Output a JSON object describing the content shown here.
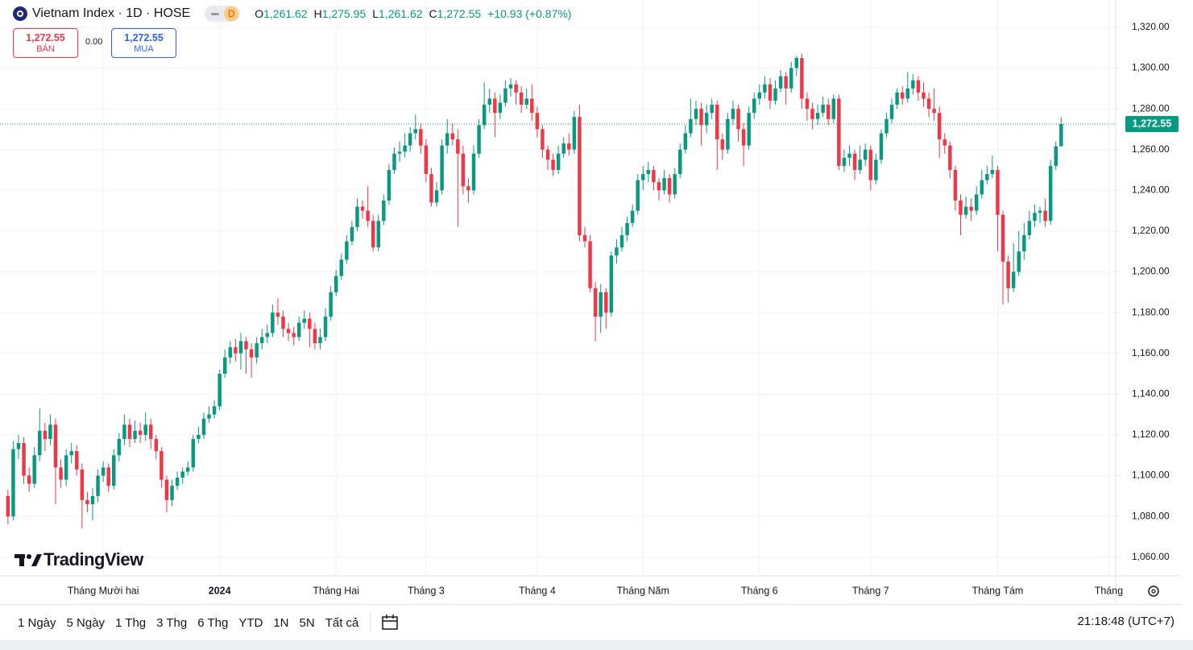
{
  "header": {
    "title": "Vietnam Index · 1D · HOSE",
    "interval_badge": "D",
    "ohlc": [
      {
        "key": "O",
        "value": "1,261.62"
      },
      {
        "key": "H",
        "value": "1,275.95"
      },
      {
        "key": "L",
        "value": "1,261.62"
      },
      {
        "key": "C",
        "value": "1,272.55"
      }
    ],
    "change": "+10.93 (+0.87%)"
  },
  "trade": {
    "sell_price": "1,272.55",
    "sell_label": "BÁN",
    "spread": "0.00",
    "buy_price": "1,272.55",
    "buy_label": "MUA"
  },
  "logo": "TradingView",
  "toolbar": {
    "ranges": [
      "1 Ngày",
      "5 Ngày",
      "1 Thg",
      "3 Thg",
      "6 Thg",
      "YTD",
      "1N",
      "5N",
      "Tất cả"
    ],
    "time": "21:18:48 (UTC+7)"
  },
  "chart_data": {
    "type": "candlestick",
    "up_color": "#089981",
    "down_color": "#f23645",
    "grid": true,
    "ylim": [
      1050.8,
      1333.4
    ],
    "yticks": [
      {
        "value": 1060,
        "label": "1,060.00"
      },
      {
        "value": 1080,
        "label": "1,080.00"
      },
      {
        "value": 1100,
        "label": "1,100.00"
      },
      {
        "value": 1120,
        "label": "1,120.00"
      },
      {
        "value": 1140,
        "label": "1,140.00"
      },
      {
        "value": 1160,
        "label": "1,160.00"
      },
      {
        "value": 1180,
        "label": "1,180.00"
      },
      {
        "value": 1200,
        "label": "1,200.00"
      },
      {
        "value": 1220,
        "label": "1,220.00"
      },
      {
        "value": 1240,
        "label": "1,240.00"
      },
      {
        "value": 1260,
        "label": "1,260.00"
      },
      {
        "value": 1280,
        "label": "1,280.00"
      },
      {
        "value": 1300,
        "label": "1,300.00"
      },
      {
        "value": 1320,
        "label": "1,320.00"
      }
    ],
    "xlim": [
      -1.5,
      209.3
    ],
    "xticks": [
      {
        "value": 18,
        "label": "Tháng Mười hai"
      },
      {
        "value": 40,
        "label": "2024",
        "bold": true
      },
      {
        "value": 62,
        "label": "Tháng Hai"
      },
      {
        "value": 79,
        "label": "Tháng 3"
      },
      {
        "value": 100,
        "label": "Tháng 4"
      },
      {
        "value": 120,
        "label": "Tháng Năm"
      },
      {
        "value": 142,
        "label": "Tháng 6"
      },
      {
        "value": 163,
        "label": "Tháng 7"
      },
      {
        "value": 187,
        "label": "Tháng Tám"
      },
      {
        "value": 208,
        "label": "Tháng"
      }
    ],
    "last_price": {
      "value": 1272.55,
      "label": "1,272.55"
    },
    "candles": [
      [
        1090,
        1093,
        1076,
        1080
      ],
      [
        1080,
        1117,
        1078,
        1113
      ],
      [
        1113,
        1120,
        1108,
        1116
      ],
      [
        1116,
        1119,
        1096,
        1100
      ],
      [
        1100,
        1104,
        1092,
        1096
      ],
      [
        1096,
        1114,
        1094,
        1110
      ],
      [
        1110,
        1133,
        1107,
        1122
      ],
      [
        1122,
        1126,
        1112,
        1118
      ],
      [
        1118,
        1130,
        1115,
        1125
      ],
      [
        1125,
        1128,
        1086,
        1104
      ],
      [
        1104,
        1108,
        1094,
        1098
      ],
      [
        1098,
        1113,
        1095,
        1110
      ],
      [
        1110,
        1116,
        1106,
        1112
      ],
      [
        1112,
        1115,
        1100,
        1103
      ],
      [
        1103,
        1106,
        1074,
        1088
      ],
      [
        1088,
        1092,
        1082,
        1086
      ],
      [
        1086,
        1094,
        1078,
        1090
      ],
      [
        1090,
        1103,
        1087,
        1100
      ],
      [
        1100,
        1107,
        1097,
        1104
      ],
      [
        1104,
        1106,
        1092,
        1095
      ],
      [
        1095,
        1113,
        1093,
        1110
      ],
      [
        1110,
        1121,
        1107,
        1118
      ],
      [
        1118,
        1130,
        1115,
        1125
      ],
      [
        1125,
        1128,
        1114,
        1118
      ],
      [
        1118,
        1127,
        1116,
        1122
      ],
      [
        1122,
        1126,
        1116,
        1120
      ],
      [
        1120,
        1131,
        1117,
        1125
      ],
      [
        1125,
        1128,
        1113,
        1118
      ],
      [
        1118,
        1120,
        1108,
        1112
      ],
      [
        1112,
        1114,
        1094,
        1098
      ],
      [
        1098,
        1100,
        1082,
        1088
      ],
      [
        1088,
        1098,
        1085,
        1095
      ],
      [
        1095,
        1102,
        1093,
        1099
      ],
      [
        1099,
        1104,
        1096,
        1102
      ],
      [
        1102,
        1107,
        1100,
        1104
      ],
      [
        1104,
        1120,
        1102,
        1118
      ],
      [
        1118,
        1124,
        1116,
        1120
      ],
      [
        1120,
        1131,
        1118,
        1128
      ],
      [
        1128,
        1134,
        1126,
        1130
      ],
      [
        1130,
        1137,
        1128,
        1134
      ],
      [
        1134,
        1152,
        1132,
        1150
      ],
      [
        1150,
        1162,
        1148,
        1158
      ],
      [
        1158,
        1166,
        1155,
        1163
      ],
      [
        1163,
        1167,
        1156,
        1160
      ],
      [
        1160,
        1170,
        1152,
        1166
      ],
      [
        1166,
        1168,
        1150,
        1162
      ],
      [
        1162,
        1165,
        1148,
        1158
      ],
      [
        1158,
        1168,
        1155,
        1165
      ],
      [
        1165,
        1172,
        1162,
        1168
      ],
      [
        1168,
        1174,
        1165,
        1170
      ],
      [
        1170,
        1184,
        1168,
        1180
      ],
      [
        1180,
        1187,
        1174,
        1178
      ],
      [
        1178,
        1181,
        1168,
        1172
      ],
      [
        1172,
        1175,
        1166,
        1170
      ],
      [
        1170,
        1173,
        1164,
        1168
      ],
      [
        1168,
        1178,
        1166,
        1175
      ],
      [
        1175,
        1181,
        1172,
        1177
      ],
      [
        1177,
        1180,
        1163,
        1172
      ],
      [
        1172,
        1175,
        1162,
        1165
      ],
      [
        1165,
        1172,
        1162,
        1168
      ],
      [
        1168,
        1182,
        1166,
        1178
      ],
      [
        1178,
        1193,
        1176,
        1190
      ],
      [
        1190,
        1201,
        1188,
        1198
      ],
      [
        1198,
        1209,
        1196,
        1206
      ],
      [
        1206,
        1218,
        1204,
        1215
      ],
      [
        1215,
        1225,
        1213,
        1222
      ],
      [
        1222,
        1236,
        1220,
        1232
      ],
      [
        1232,
        1235,
        1226,
        1230
      ],
      [
        1230,
        1242,
        1222,
        1225
      ],
      [
        1225,
        1228,
        1210,
        1212
      ],
      [
        1212,
        1228,
        1210,
        1225
      ],
      [
        1225,
        1238,
        1223,
        1235
      ],
      [
        1235,
        1253,
        1233,
        1250
      ],
      [
        1250,
        1261,
        1248,
        1258
      ],
      [
        1258,
        1264,
        1254,
        1259
      ],
      [
        1259,
        1268,
        1256,
        1262
      ],
      [
        1262,
        1271,
        1259,
        1268
      ],
      [
        1268,
        1277,
        1265,
        1270
      ],
      [
        1270,
        1273,
        1258,
        1262
      ],
      [
        1262,
        1265,
        1244,
        1248
      ],
      [
        1248,
        1251,
        1232,
        1234
      ],
      [
        1234,
        1244,
        1232,
        1240
      ],
      [
        1240,
        1265,
        1238,
        1262
      ],
      [
        1262,
        1275,
        1258,
        1268
      ],
      [
        1268,
        1273,
        1262,
        1265
      ],
      [
        1265,
        1270,
        1222,
        1258
      ],
      [
        1258,
        1262,
        1238,
        1242
      ],
      [
        1242,
        1246,
        1234,
        1240
      ],
      [
        1240,
        1262,
        1238,
        1258
      ],
      [
        1258,
        1275,
        1256,
        1272
      ],
      [
        1272,
        1293,
        1270,
        1282
      ],
      [
        1282,
        1290,
        1278,
        1285
      ],
      [
        1285,
        1288,
        1266,
        1278
      ],
      [
        1278,
        1287,
        1275,
        1283
      ],
      [
        1283,
        1294,
        1281,
        1290
      ],
      [
        1290,
        1295,
        1286,
        1292
      ],
      [
        1292,
        1294,
        1282,
        1288
      ],
      [
        1288,
        1291,
        1278,
        1282
      ],
      [
        1282,
        1290,
        1280,
        1285
      ],
      [
        1285,
        1292,
        1274,
        1278
      ],
      [
        1278,
        1281,
        1266,
        1270
      ],
      [
        1270,
        1272,
        1256,
        1260
      ],
      [
        1260,
        1262,
        1250,
        1255
      ],
      [
        1255,
        1258,
        1247,
        1250
      ],
      [
        1250,
        1262,
        1248,
        1258
      ],
      [
        1258,
        1266,
        1256,
        1263
      ],
      [
        1263,
        1268,
        1257,
        1260
      ],
      [
        1260,
        1279,
        1258,
        1276
      ],
      [
        1276,
        1282,
        1215,
        1218
      ],
      [
        1218,
        1222,
        1212,
        1215
      ],
      [
        1215,
        1218,
        1190,
        1192
      ],
      [
        1192,
        1195,
        1166,
        1178
      ],
      [
        1178,
        1194,
        1170,
        1190
      ],
      [
        1190,
        1192,
        1172,
        1180
      ],
      [
        1180,
        1210,
        1178,
        1208
      ],
      [
        1208,
        1216,
        1204,
        1212
      ],
      [
        1212,
        1222,
        1210,
        1218
      ],
      [
        1218,
        1227,
        1215,
        1224
      ],
      [
        1224,
        1233,
        1222,
        1230
      ],
      [
        1230,
        1248,
        1228,
        1245
      ],
      [
        1245,
        1252,
        1240,
        1248
      ],
      [
        1248,
        1254,
        1244,
        1250
      ],
      [
        1250,
        1252,
        1240,
        1244
      ],
      [
        1244,
        1246,
        1235,
        1240
      ],
      [
        1240,
        1250,
        1238,
        1246
      ],
      [
        1246,
        1248,
        1234,
        1238
      ],
      [
        1238,
        1251,
        1236,
        1248
      ],
      [
        1248,
        1263,
        1246,
        1260
      ],
      [
        1260,
        1272,
        1258,
        1268
      ],
      [
        1268,
        1285,
        1266,
        1275
      ],
      [
        1275,
        1284,
        1272,
        1280
      ],
      [
        1280,
        1283,
        1262,
        1272
      ],
      [
        1272,
        1282,
        1268,
        1278
      ],
      [
        1278,
        1285,
        1275,
        1282
      ],
      [
        1282,
        1284,
        1250,
        1265
      ],
      [
        1265,
        1268,
        1255,
        1260
      ],
      [
        1260,
        1278,
        1258,
        1275
      ],
      [
        1275,
        1284,
        1272,
        1280
      ],
      [
        1280,
        1282,
        1264,
        1270
      ],
      [
        1270,
        1273,
        1252,
        1262
      ],
      [
        1262,
        1281,
        1260,
        1278
      ],
      [
        1278,
        1288,
        1275,
        1285
      ],
      [
        1285,
        1292,
        1282,
        1288
      ],
      [
        1288,
        1296,
        1285,
        1292
      ],
      [
        1292,
        1295,
        1280,
        1284
      ],
      [
        1284,
        1294,
        1282,
        1290
      ],
      [
        1290,
        1299,
        1288,
        1296
      ],
      [
        1296,
        1298,
        1282,
        1290
      ],
      [
        1290,
        1303,
        1288,
        1300
      ],
      [
        1300,
        1306,
        1296,
        1305
      ],
      [
        1305,
        1307,
        1280,
        1285
      ],
      [
        1285,
        1288,
        1274,
        1280
      ],
      [
        1280,
        1283,
        1270,
        1275
      ],
      [
        1275,
        1282,
        1272,
        1278
      ],
      [
        1278,
        1286,
        1276,
        1282
      ],
      [
        1282,
        1285,
        1272,
        1275
      ],
      [
        1275,
        1287,
        1273,
        1285
      ],
      [
        1285,
        1287,
        1250,
        1252
      ],
      [
        1252,
        1260,
        1249,
        1256
      ],
      [
        1256,
        1262,
        1252,
        1258
      ],
      [
        1258,
        1260,
        1245,
        1250
      ],
      [
        1250,
        1262,
        1248,
        1255
      ],
      [
        1255,
        1263,
        1252,
        1260
      ],
      [
        1260,
        1262,
        1240,
        1245
      ],
      [
        1245,
        1258,
        1243,
        1255
      ],
      [
        1255,
        1270,
        1253,
        1268
      ],
      [
        1268,
        1278,
        1266,
        1275
      ],
      [
        1275,
        1285,
        1273,
        1282
      ],
      [
        1282,
        1290,
        1280,
        1288
      ],
      [
        1288,
        1291,
        1282,
        1285
      ],
      [
        1285,
        1298,
        1283,
        1290
      ],
      [
        1290,
        1297,
        1287,
        1294
      ],
      [
        1294,
        1296,
        1284,
        1288
      ],
      [
        1288,
        1293,
        1281,
        1285
      ],
      [
        1285,
        1288,
        1276,
        1280
      ],
      [
        1280,
        1290,
        1274,
        1278
      ],
      [
        1278,
        1281,
        1256,
        1265
      ],
      [
        1265,
        1268,
        1258,
        1262
      ],
      [
        1262,
        1264,
        1246,
        1250
      ],
      [
        1250,
        1252,
        1230,
        1235
      ],
      [
        1235,
        1238,
        1218,
        1228
      ],
      [
        1228,
        1237,
        1226,
        1232
      ],
      [
        1232,
        1236,
        1225,
        1230
      ],
      [
        1230,
        1242,
        1228,
        1238
      ],
      [
        1238,
        1250,
        1236,
        1245
      ],
      [
        1245,
        1252,
        1243,
        1248
      ],
      [
        1248,
        1257,
        1246,
        1250
      ],
      [
        1250,
        1252,
        1210,
        1228
      ],
      [
        1228,
        1230,
        1184,
        1205
      ],
      [
        1205,
        1208,
        1185,
        1192
      ],
      [
        1192,
        1214,
        1190,
        1200
      ],
      [
        1200,
        1220,
        1198,
        1210
      ],
      [
        1210,
        1224,
        1206,
        1218
      ],
      [
        1218,
        1230,
        1216,
        1225
      ],
      [
        1225,
        1233,
        1222,
        1229
      ],
      [
        1229,
        1232,
        1224,
        1230
      ],
      [
        1230,
        1236,
        1222,
        1225
      ],
      [
        1225,
        1255,
        1223,
        1252
      ],
      [
        1252,
        1264,
        1250,
        1261.62
      ],
      [
        1261.62,
        1275.95,
        1261.62,
        1272.55
      ]
    ]
  }
}
